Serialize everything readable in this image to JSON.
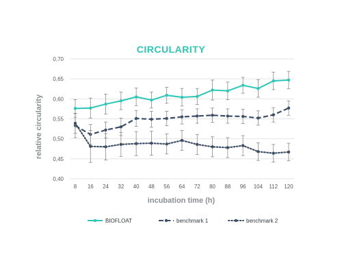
{
  "chart_data": {
    "type": "line",
    "title": "CIRCULARITY",
    "xlabel": "incubation time (h)",
    "ylabel": "relative circularity",
    "x": [
      8,
      16,
      24,
      32,
      40,
      48,
      56,
      64,
      72,
      80,
      88,
      96,
      104,
      112,
      120
    ],
    "x_tick_labels": [
      "8",
      "16",
      "24",
      "32",
      "40",
      "48",
      "56",
      "64",
      "72",
      "80",
      "88",
      "96",
      "104",
      "112",
      "120"
    ],
    "ylim": [
      0.4,
      0.7
    ],
    "y_ticks": [
      0.4,
      0.45,
      0.5,
      0.55,
      0.6,
      0.65,
      0.7
    ],
    "y_tick_labels": [
      "0,40",
      "0,45",
      "0,50",
      "0,55",
      "0,60",
      "0,65",
      "0,70"
    ],
    "grid": "horizontal",
    "legend_position": "bottom",
    "series": [
      {
        "name": "BIOFLOAT",
        "color": "#2cc7b5",
        "line_style": "solid",
        "values": [
          0.576,
          0.577,
          0.587,
          0.595,
          0.605,
          0.597,
          0.609,
          0.604,
          0.606,
          0.622,
          0.62,
          0.634,
          0.626,
          0.645,
          0.647
        ],
        "errors": [
          0.022,
          0.025,
          0.025,
          0.022,
          0.022,
          0.02,
          0.02,
          0.022,
          0.02,
          0.025,
          0.022,
          0.02,
          0.022,
          0.022,
          0.022
        ]
      },
      {
        "name": "benchmark 1",
        "color": "#3d4f66",
        "line_style": "dashed",
        "values": [
          0.533,
          0.511,
          0.522,
          0.53,
          0.551,
          0.549,
          0.551,
          0.555,
          0.557,
          0.559,
          0.557,
          0.556,
          0.552,
          0.56,
          0.577
        ],
        "errors": [
          0.03,
          0.025,
          0.02,
          0.022,
          0.02,
          0.02,
          0.018,
          0.018,
          0.018,
          0.018,
          0.018,
          0.018,
          0.018,
          0.018,
          0.018
        ]
      },
      {
        "name": "benchmark 2",
        "color": "#3d4f66",
        "line_style": "dotted",
        "values": [
          0.539,
          0.481,
          0.48,
          0.486,
          0.488,
          0.489,
          0.487,
          0.496,
          0.486,
          0.48,
          0.478,
          0.483,
          0.468,
          0.464,
          0.467
        ],
        "errors": [
          0.025,
          0.04,
          0.033,
          0.03,
          0.03,
          0.03,
          0.025,
          0.025,
          0.025,
          0.025,
          0.025,
          0.025,
          0.022,
          0.022,
          0.022
        ]
      }
    ]
  }
}
